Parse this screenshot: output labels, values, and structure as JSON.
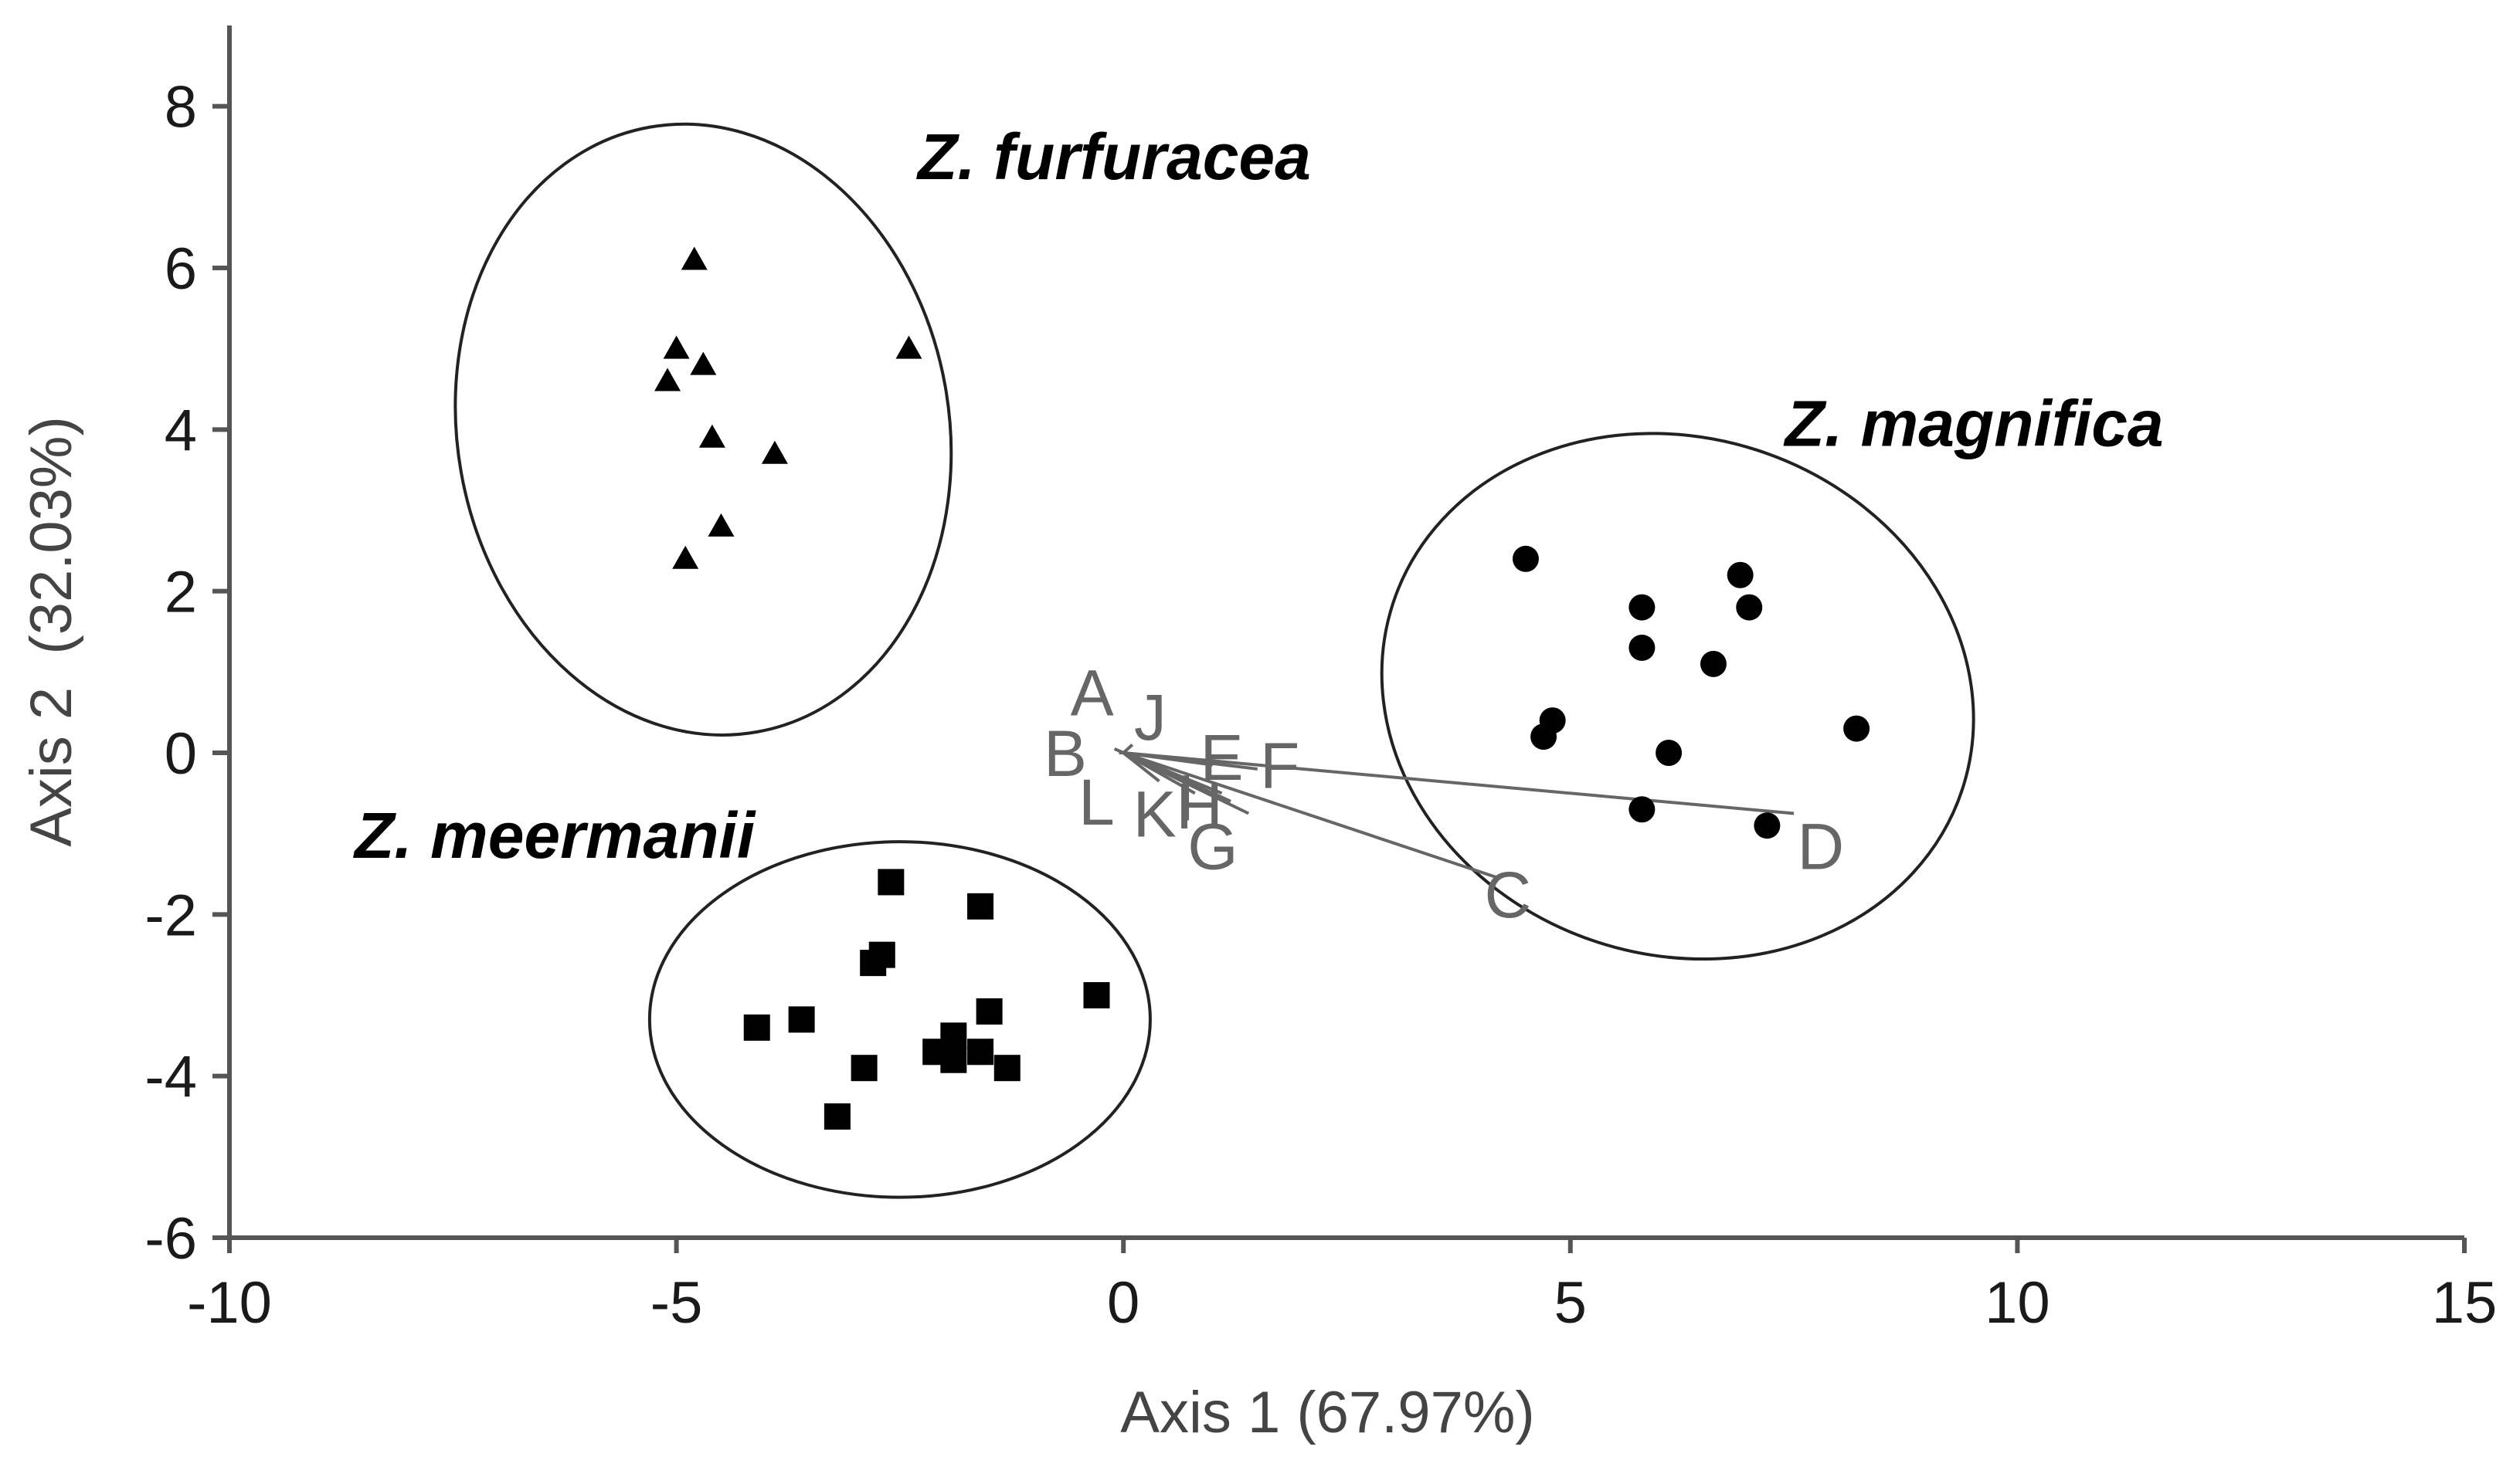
{
  "chart_data": {
    "type": "scatter",
    "xlabel": "Axis 1 (67.97%)",
    "ylabel": "Axis 2  (32.03%)",
    "xlim": [
      -10,
      15
    ],
    "ylim": [
      -6,
      9
    ],
    "xticks": [
      "-10",
      "-5",
      "0",
      "5",
      "10",
      "15"
    ],
    "xtick_values": [
      -10,
      -5,
      0,
      5,
      10,
      15
    ],
    "yticks": [
      "8",
      "6",
      "4",
      "2",
      "0",
      "-2",
      "-4",
      "-6"
    ],
    "ytick_values": [
      8,
      6,
      4,
      2,
      0,
      -2,
      -4,
      -6
    ],
    "grid": false,
    "series": [
      {
        "name": "Z. furfuracea",
        "marker": "triangle",
        "points": [
          [
            -4.8,
            6.1
          ],
          [
            -5.0,
            5.0
          ],
          [
            -4.7,
            4.8
          ],
          [
            -5.1,
            4.6
          ],
          [
            -2.4,
            5.0
          ],
          [
            -4.6,
            3.9
          ],
          [
            -3.9,
            3.7
          ],
          [
            -4.5,
            2.8
          ],
          [
            -4.9,
            2.4
          ]
        ]
      },
      {
        "name": "Z. magnifica",
        "marker": "circle",
        "points": [
          [
            4.5,
            2.4
          ],
          [
            6.9,
            2.2
          ],
          [
            5.8,
            1.8
          ],
          [
            7.0,
            1.8
          ],
          [
            5.8,
            1.3
          ],
          [
            6.6,
            1.1
          ],
          [
            4.8,
            0.4
          ],
          [
            4.7,
            0.2
          ],
          [
            6.1,
            0.0
          ],
          [
            8.2,
            0.3
          ],
          [
            5.8,
            -0.7
          ],
          [
            7.2,
            -0.9
          ]
        ]
      },
      {
        "name": "Z. meermanii",
        "marker": "square",
        "points": [
          [
            -2.6,
            -1.6
          ],
          [
            -1.6,
            -1.9
          ],
          [
            -2.7,
            -2.5
          ],
          [
            -2.8,
            -2.6
          ],
          [
            -0.3,
            -3.0
          ],
          [
            -1.5,
            -3.2
          ],
          [
            -4.1,
            -3.4
          ],
          [
            -3.6,
            -3.3
          ],
          [
            -1.9,
            -3.5
          ],
          [
            -2.1,
            -3.7
          ],
          [
            -1.9,
            -3.8
          ],
          [
            -1.6,
            -3.7
          ],
          [
            -1.3,
            -3.9
          ],
          [
            -2.9,
            -3.9
          ],
          [
            -3.2,
            -4.5
          ]
        ]
      }
    ],
    "ellipses": [
      {
        "group": "Z. furfuracea",
        "cx": -4.7,
        "cy": 4.0,
        "rx": 2.75,
        "ry": 3.8,
        "tilt": -10
      },
      {
        "group": "Z. magnifica",
        "cx": 6.2,
        "cy": 0.7,
        "rx": 3.35,
        "ry": 3.2,
        "tilt": 18
      },
      {
        "group": "Z. meermanii",
        "cx": -2.5,
        "cy": -3.3,
        "rx": 2.8,
        "ry": 2.2,
        "tilt": 0
      }
    ],
    "group_labels": [
      {
        "text": "Z. furfuracea",
        "abbr": "Z.",
        "epithet": "furfuracea",
        "x": -2.3,
        "y": 7.1
      },
      {
        "text": "Z. magnifica",
        "abbr": "Z.",
        "epithet": "magnifica",
        "x": 7.4,
        "y": 3.8
      },
      {
        "text": "Z. meermanii",
        "abbr": "Z.",
        "epithet": "meermanii",
        "x": -8.6,
        "y": -1.3
      }
    ],
    "vectors": [
      {
        "label": "A",
        "end": [
          -0.1,
          0.05
        ],
        "label_pos": [
          -0.35,
          0.75
        ]
      },
      {
        "label": "J",
        "end": [
          0.1,
          0.1
        ],
        "label_pos": [
          0.3,
          0.45
        ]
      },
      {
        "label": "B",
        "end": [
          -0.05,
          0.0
        ],
        "label_pos": [
          -0.65,
          0.0
        ]
      },
      {
        "label": "E",
        "end": [
          1.0,
          -0.15
        ],
        "label_pos": [
          1.1,
          -0.05
        ]
      },
      {
        "label": "F",
        "end": [
          1.5,
          -0.2
        ],
        "label_pos": [
          1.75,
          -0.15
        ]
      },
      {
        "label": "L",
        "end": [
          0.4,
          -0.35
        ],
        "label_pos": [
          -0.3,
          -0.6
        ]
      },
      {
        "label": "K",
        "end": [
          0.8,
          -0.5
        ],
        "label_pos": [
          0.35,
          -0.75
        ]
      },
      {
        "label": "H",
        "end": [
          1.2,
          -0.6
        ],
        "label_pos": [
          0.85,
          -0.65
        ]
      },
      {
        "label": "I",
        "end": [
          1.1,
          -0.5
        ],
        "label_pos": [
          0.7,
          -0.55
        ]
      },
      {
        "label": "G",
        "end": [
          1.4,
          -0.75
        ],
        "label_pos": [
          1.0,
          -1.15
        ]
      },
      {
        "label": "C",
        "end": [
          4.2,
          -1.55
        ],
        "label_pos": [
          4.3,
          -1.75
        ]
      },
      {
        "label": "D",
        "end": [
          7.5,
          -0.75
        ],
        "label_pos": [
          7.8,
          -1.15
        ]
      }
    ]
  }
}
